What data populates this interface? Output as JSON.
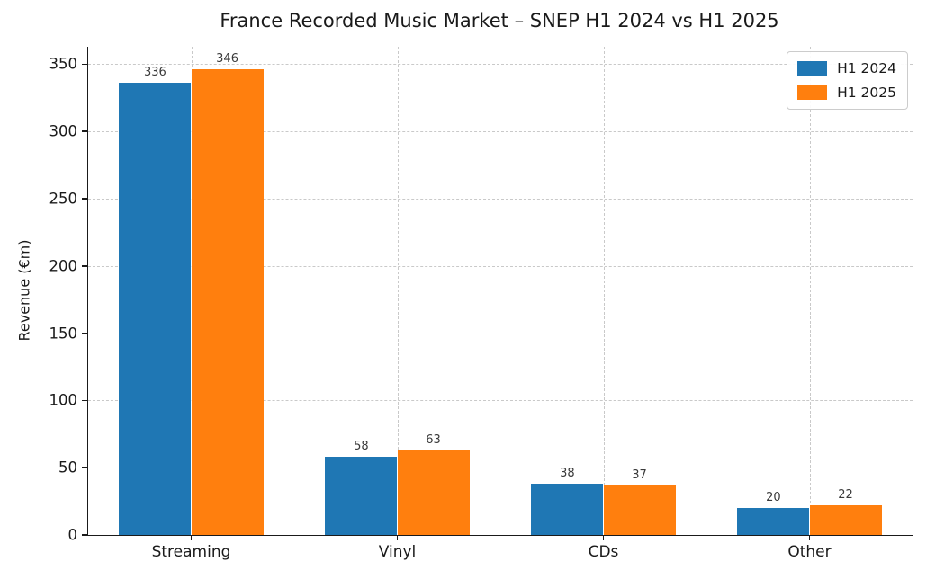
{
  "chart_data": {
    "type": "bar",
    "title": "France Recorded Music Market – SNEP H1 2024 vs H1 2025",
    "categories": [
      "Streaming",
      "Vinyl",
      "CDs",
      "Other"
    ],
    "series": [
      {
        "name": "H1 2024",
        "color": "#1f77b4",
        "values": [
          336,
          58,
          38,
          20
        ]
      },
      {
        "name": "H1 2025",
        "color": "#ff7f0e",
        "values": [
          346,
          63,
          37,
          22
        ]
      }
    ],
    "xlabel": "",
    "ylabel": "Revenue (€m)",
    "ylim": [
      0,
      363
    ],
    "yticks": [
      0,
      50,
      100,
      150,
      200,
      250,
      300,
      350
    ],
    "grid": "both-dashed",
    "grid_color": "#c9c9c9",
    "legend_position": "upper-right",
    "bar_width_frac": 0.35,
    "value_labels": true
  }
}
